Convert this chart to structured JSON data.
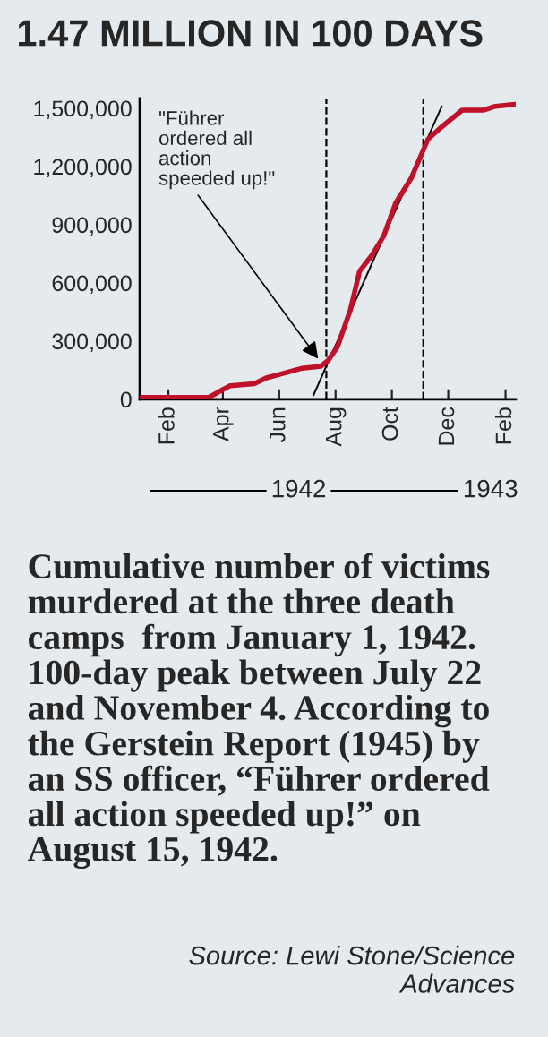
{
  "chart_data": {
    "type": "line",
    "title": "1.47 MILLION IN 100 DAYS",
    "series": [
      {
        "color": "#c0102a",
        "x": [
          "1942-01-01",
          "1942-03-17",
          "1942-04-01",
          "1942-04-09",
          "1942-05-05",
          "1942-05-18",
          "1942-06-03",
          "1942-06-26",
          "1942-07-16",
          "1942-07-24",
          "1942-08-03",
          "1942-08-17",
          "1942-08-27",
          "1942-09-09",
          "1942-09-22",
          "1942-10-05",
          "1942-10-22",
          "1942-11-09",
          "1942-11-23",
          "1942-12-16",
          "1943-01-08",
          "1943-01-21",
          "1943-02-11"
        ],
        "values": [
          10000,
          10000,
          50000,
          70000,
          80000,
          110000,
          130000,
          160000,
          170000,
          200000,
          270000,
          460000,
          660000,
          740000,
          840000,
          1010000,
          1140000,
          1340000,
          1400000,
          1490000,
          1490000,
          1510000,
          1520000
        ]
      },
      {
        "color": "#000000",
        "x": [
          "1942-07-08",
          "1942-11-24"
        ],
        "values": [
          20000,
          1510000
        ]
      }
    ],
    "xlim": [
      "1942-01-01",
      "1943-02-12"
    ],
    "ylim": [
      0,
      1550000
    ],
    "xticks": [
      {
        "value": "1942-02-01",
        "label": "Feb"
      },
      {
        "value": "1942-04-01",
        "label": "Apr"
      },
      {
        "value": "1942-06-01",
        "label": "Jun"
      },
      {
        "value": "1942-08-01",
        "label": "Aug"
      },
      {
        "value": "1942-10-01",
        "label": "Oct"
      },
      {
        "value": "1942-12-01",
        "label": "Dec"
      },
      {
        "value": "1943-02-01",
        "label": "Feb"
      }
    ],
    "yticks": [
      {
        "value": 0,
        "label": "0"
      },
      {
        "value": 300000,
        "label": "300,000"
      },
      {
        "value": 600000,
        "label": "600,000"
      },
      {
        "value": 900000,
        "label": "900,000"
      },
      {
        "value": 1200000,
        "label": "1,200,000"
      },
      {
        "value": 1500000,
        "label": "1,500,000"
      }
    ],
    "ref_lines": [
      {
        "axis": "x",
        "value": "1942-07-22",
        "color": "#000000",
        "line_style": "dashed"
      },
      {
        "axis": "x",
        "value": "1942-11-04",
        "color": "#000000",
        "line_style": "dashed"
      }
    ],
    "grid": false,
    "annotations": [
      "\"Führer\nordered all\naction\nspeeded up!\"",
      "1942",
      "1943",
      "Cumulative number of victims\nmurdered at the three death\ncamps  from January 1, 1942.\n100-day peak between July 22\nand November 4. According to\nthe Gerstein Report (1945) by\nan SS officer, “Führer ordered\nall action speeded up!” on\nAugust 15, 1942.",
      "Source: Lewi Stone/Science\nAdvances"
    ]
  }
}
